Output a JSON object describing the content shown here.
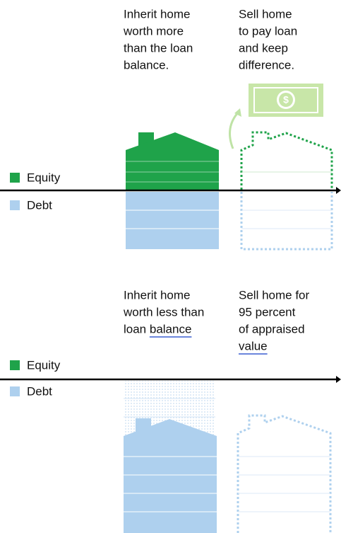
{
  "top": {
    "left_text": [
      "Inherit home",
      "worth more",
      "than the loan",
      "balance."
    ],
    "right_text": [
      "Sell home",
      "to pay loan",
      "and keep",
      "difference."
    ],
    "legend": [
      "Equity",
      "Debt"
    ]
  },
  "bottom": {
    "left_text": [
      "Inherit home",
      "worth less than",
      "loan balance"
    ],
    "right_text": [
      "Sell home for",
      "95 percent",
      "of appraised",
      "value"
    ],
    "legend": [
      "Equity",
      "Debt"
    ]
  }
}
